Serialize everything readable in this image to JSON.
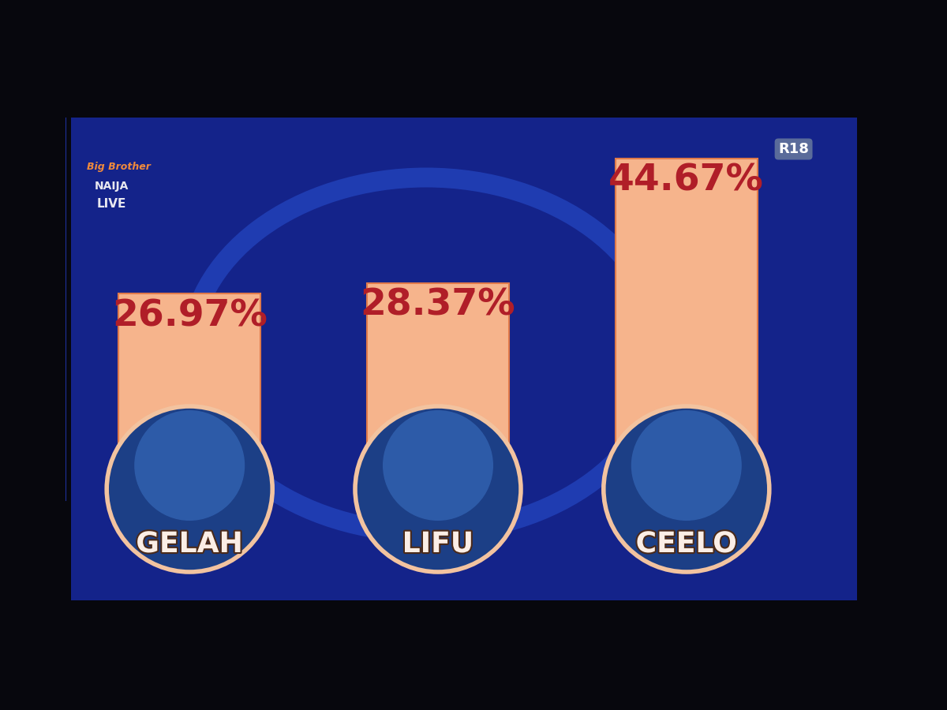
{
  "chart_data": {
    "type": "bar",
    "categories": [
      "GELAH",
      "LIFU",
      "CEELO"
    ],
    "values": [
      26.97,
      28.37,
      44.67
    ],
    "value_labels": [
      "26.97%",
      "28.37%",
      "44.67%"
    ],
    "data_labels": true,
    "tick_labels": false,
    "color": "#f6b48c",
    "ylim": [
      0,
      50
    ],
    "yticks": [
      0,
      50
    ],
    "grid": false,
    "annotations": [
      "Big Brother",
      "NAIJA",
      "LIVE",
      "R18"
    ]
  }
}
